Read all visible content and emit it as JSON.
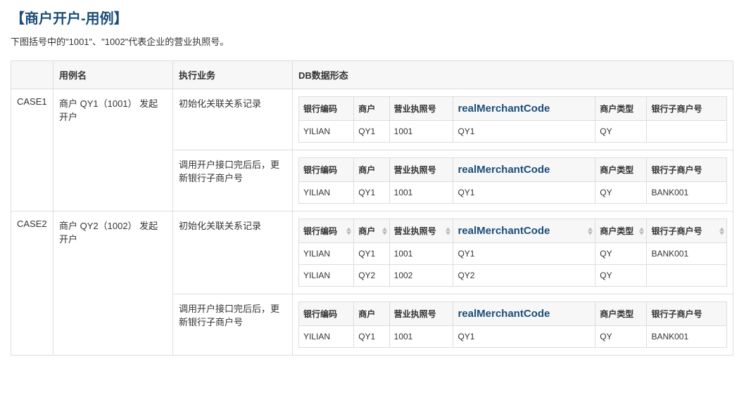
{
  "title": "【商户开户-用例】",
  "subtitle": "下图括号中的\"1001\"、\"1002\"代表企业的营业执照号。",
  "outer_headers": {
    "case": "",
    "name": "用例名",
    "action": "执行业务",
    "db": "DB数据形态"
  },
  "inner_headers": {
    "bankcode": "银行编码",
    "merchant": "商户",
    "license": "营业执照号",
    "realcode": "realMerchantCode",
    "type": "商户类型",
    "sub": "银行子商户号"
  },
  "cases": [
    {
      "id": "CASE1",
      "name": "商户 QY1（1001） 发起开户",
      "steps": [
        {
          "action": "初始化关联关系记录",
          "sortable": false,
          "rows": [
            {
              "bankcode": "YILIAN",
              "merchant": "QY1",
              "license": "1001",
              "realcode": "QY1",
              "type": "QY",
              "sub": ""
            }
          ]
        },
        {
          "action": "调用开户接口完后后，更新银行子商户号",
          "sortable": false,
          "rows": [
            {
              "bankcode": "YILIAN",
              "merchant": "QY1",
              "license": "1001",
              "realcode": "QY1",
              "type": "QY",
              "sub": "BANK001"
            }
          ]
        }
      ]
    },
    {
      "id": "CASE2",
      "name": "商户 QY2（1002） 发起开户",
      "steps": [
        {
          "action": "初始化关联关系记录",
          "sortable": true,
          "rows": [
            {
              "bankcode": "YILIAN",
              "merchant": "QY1",
              "license": "1001",
              "realcode": "QY1",
              "type": "QY",
              "sub": "BANK001"
            },
            {
              "bankcode": "YILIAN",
              "merchant": "QY2",
              "license": "1002",
              "realcode": "QY2",
              "type": "QY",
              "sub": ""
            }
          ]
        },
        {
          "action": "调用开户接口完后后，更新银行子商户号",
          "sortable": false,
          "rows": [
            {
              "bankcode": "YILIAN",
              "merchant": "QY1",
              "license": "1001",
              "realcode": "QY1",
              "type": "QY",
              "sub": "BANK001"
            }
          ]
        }
      ]
    }
  ]
}
